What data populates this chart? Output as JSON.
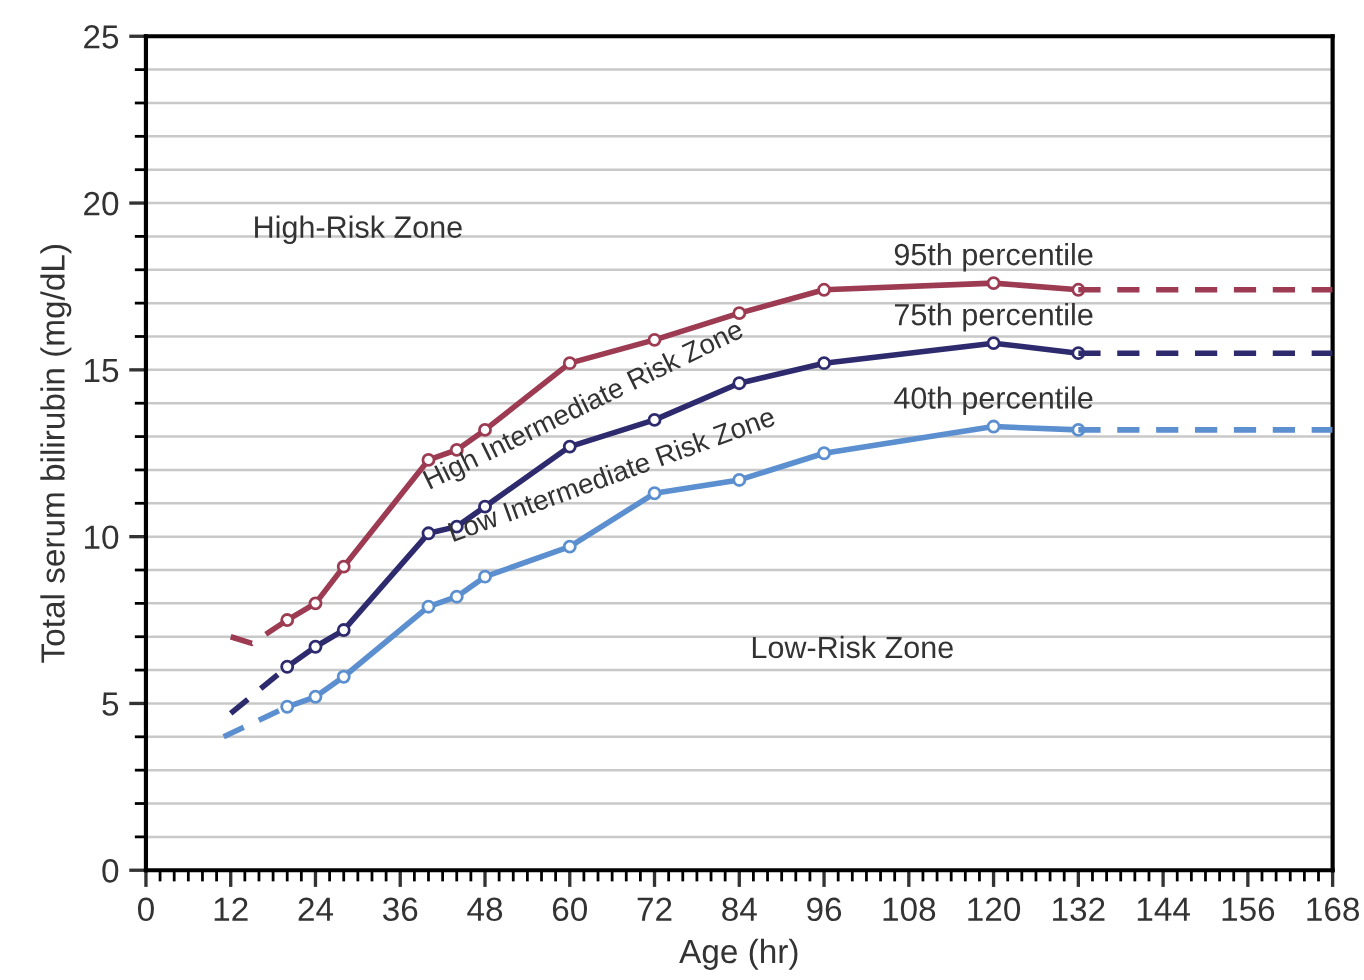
{
  "chart_data": {
    "type": "line",
    "xlabel": "Age (hr)",
    "ylabel": "Total serum bilirubin (mg/dL)",
    "annotations": [
      "High-Risk Zone",
      "High Intermediate Risk Zone",
      "Low Intermediate Risk Zone",
      "Low-Risk Zone"
    ],
    "series": [
      {
        "name": "95th percentile",
        "color": "#9c3b52",
        "x": [
          20,
          24,
          28,
          40,
          44,
          48,
          60,
          72,
          84,
          96,
          120,
          132
        ],
        "values": [
          7.5,
          8.0,
          9.1,
          12.3,
          12.6,
          13.2,
          15.2,
          15.9,
          16.7,
          17.4,
          17.6,
          17.4
        ]
      },
      {
        "color": "#9c3b52",
        "line_style": "dashed",
        "marker": "none",
        "x": [
          12,
          15,
          20
        ],
        "values": [
          7.0,
          6.8,
          7.5
        ]
      },
      {
        "color": "#9c3b52",
        "line_style": "dashed",
        "marker": "none",
        "x": [
          132,
          168
        ],
        "values": [
          17.4,
          17.4
        ]
      },
      {
        "name": "75th percentile",
        "color": "#2e2a6e",
        "x": [
          20,
          24,
          28,
          40,
          44,
          48,
          60,
          72,
          84,
          96,
          120,
          132
        ],
        "values": [
          6.1,
          6.7,
          7.2,
          10.1,
          10.3,
          10.9,
          12.7,
          13.5,
          14.6,
          15.2,
          15.8,
          15.5
        ]
      },
      {
        "color": "#2e2a6e",
        "line_style": "dashed",
        "marker": "none",
        "x": [
          12,
          20
        ],
        "values": [
          4.7,
          6.1
        ]
      },
      {
        "color": "#2e2a6e",
        "line_style": "dashed",
        "marker": "none",
        "x": [
          132,
          168
        ],
        "values": [
          15.5,
          15.5
        ]
      },
      {
        "name": "40th percentile",
        "color": "#5b8fcf",
        "x": [
          20,
          24,
          28,
          40,
          44,
          48,
          60,
          72,
          84,
          96,
          120,
          132
        ],
        "values": [
          4.9,
          5.2,
          5.8,
          7.9,
          8.2,
          8.8,
          9.7,
          11.3,
          11.7,
          12.5,
          13.3,
          13.2
        ]
      },
      {
        "color": "#5b8fcf",
        "line_style": "dashed",
        "marker": "none",
        "x": [
          11,
          20
        ],
        "values": [
          4.0,
          4.9
        ]
      },
      {
        "color": "#5b8fcf",
        "line_style": "dashed",
        "marker": "none",
        "x": [
          132,
          168
        ],
        "values": [
          13.2,
          13.2
        ]
      }
    ],
    "marker": "circle",
    "line_style": "solid",
    "grid": "y",
    "xlim": [
      0,
      168
    ],
    "ylim": [
      0,
      25
    ],
    "xticks": [
      0,
      {
        "value": 2,
        "label": null
      },
      {
        "value": 4,
        "label": null
      },
      {
        "value": 6,
        "label": null
      },
      {
        "value": 8,
        "label": null
      },
      {
        "value": 10,
        "label": null
      },
      12,
      {
        "value": 14,
        "label": null
      },
      {
        "value": 16,
        "label": null
      },
      {
        "value": 18,
        "label": null
      },
      {
        "value": 20,
        "label": null
      },
      {
        "value": 22,
        "label": null
      },
      24,
      {
        "value": 26,
        "label": null
      },
      {
        "value": 28,
        "label": null
      },
      {
        "value": 30,
        "label": null
      },
      {
        "value": 32,
        "label": null
      },
      {
        "value": 34,
        "label": null
      },
      36,
      {
        "value": 38,
        "label": null
      },
      {
        "value": 40,
        "label": null
      },
      {
        "value": 42,
        "label": null
      },
      {
        "value": 44,
        "label": null
      },
      {
        "value": 46,
        "label": null
      },
      48,
      {
        "value": 50,
        "label": null
      },
      {
        "value": 52,
        "label": null
      },
      {
        "value": 54,
        "label": null
      },
      {
        "value": 56,
        "label": null
      },
      {
        "value": 58,
        "label": null
      },
      60,
      {
        "value": 62,
        "label": null
      },
      {
        "value": 64,
        "label": null
      },
      {
        "value": 66,
        "label": null
      },
      {
        "value": 68,
        "label": null
      },
      {
        "value": 70,
        "label": null
      },
      72,
      {
        "value": 74,
        "label": null
      },
      {
        "value": 76,
        "label": null
      },
      {
        "value": 78,
        "label": null
      },
      {
        "value": 80,
        "label": null
      },
      {
        "value": 82,
        "label": null
      },
      84,
      {
        "value": 86,
        "label": null
      },
      {
        "value": 88,
        "label": null
      },
      {
        "value": 90,
        "label": null
      },
      {
        "value": 92,
        "label": null
      },
      {
        "value": 94,
        "label": null
      },
      96,
      {
        "value": 98,
        "label": null
      },
      {
        "value": 100,
        "label": null
      },
      {
        "value": 102,
        "label": null
      },
      {
        "value": 104,
        "label": null
      },
      {
        "value": 106,
        "label": null
      },
      108,
      {
        "value": 110,
        "label": null
      },
      {
        "value": 112,
        "label": null
      },
      {
        "value": 114,
        "label": null
      },
      {
        "value": 116,
        "label": null
      },
      {
        "value": 118,
        "label": null
      },
      120,
      {
        "value": 122,
        "label": null
      },
      {
        "value": 124,
        "label": null
      },
      {
        "value": 126,
        "label": null
      },
      {
        "value": 128,
        "label": null
      },
      {
        "value": 130,
        "label": null
      },
      132,
      {
        "value": 134,
        "label": null
      },
      {
        "value": 136,
        "label": null
      },
      {
        "value": 138,
        "label": null
      },
      {
        "value": 140,
        "label": null
      },
      {
        "value": 142,
        "label": null
      },
      144,
      {
        "value": 146,
        "label": null
      },
      {
        "value": 148,
        "label": null
      },
      {
        "value": 150,
        "label": null
      },
      {
        "value": 152,
        "label": null
      },
      {
        "value": 154,
        "label": null
      },
      156,
      {
        "value": 158,
        "label": null
      },
      {
        "value": 160,
        "label": null
      },
      {
        "value": 162,
        "label": null
      },
      {
        "value": 164,
        "label": null
      },
      {
        "value": 166,
        "label": null
      },
      168
    ],
    "yticks": [
      0,
      {
        "value": 1,
        "label": null
      },
      {
        "value": 2,
        "label": null
      },
      {
        "value": 3,
        "label": null
      },
      {
        "value": 4,
        "label": null
      },
      5,
      {
        "value": 6,
        "label": null
      },
      {
        "value": 7,
        "label": null
      },
      {
        "value": 8,
        "label": null
      },
      {
        "value": 9,
        "label": null
      },
      10,
      {
        "value": 11,
        "label": null
      },
      {
        "value": 12,
        "label": null
      },
      {
        "value": 13,
        "label": null
      },
      {
        "value": 14,
        "label": null
      },
      15,
      {
        "value": 16,
        "label": null
      },
      {
        "value": 17,
        "label": null
      },
      {
        "value": 18,
        "label": null
      },
      {
        "value": 19,
        "label": null
      },
      20,
      {
        "value": 21,
        "label": null
      },
      {
        "value": 22,
        "label": null
      },
      {
        "value": 23,
        "label": null
      },
      {
        "value": 24,
        "label": null
      },
      25
    ]
  }
}
